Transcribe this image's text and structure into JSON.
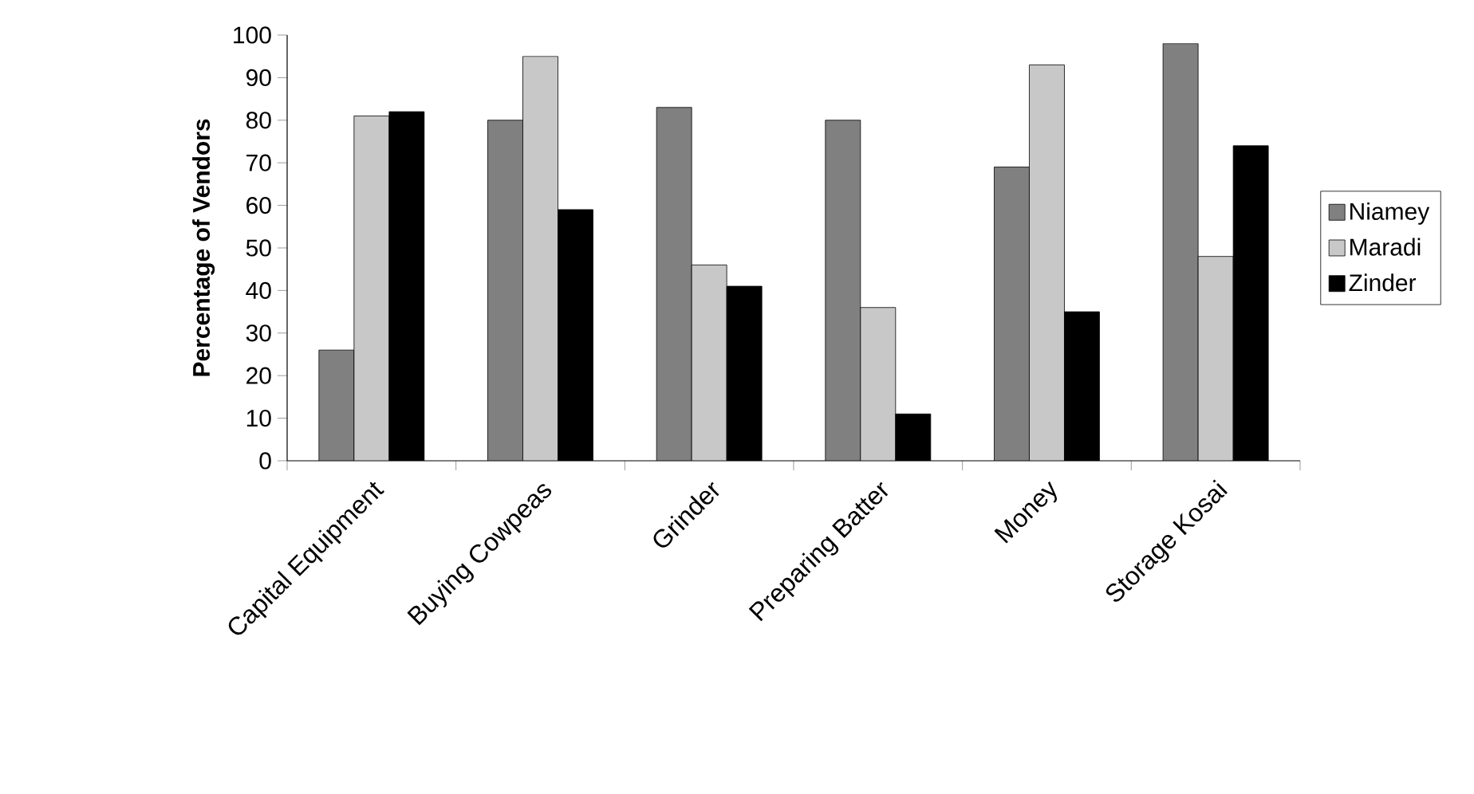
{
  "chart_data": {
    "type": "bar",
    "ylabel": "Percentage of Vendors",
    "categories": [
      "Capital Equipment",
      "Buying Cowpeas",
      "Grinder",
      "Preparing Batter",
      "Money",
      "Storage Kosai"
    ],
    "series": [
      {
        "name": "Niamey",
        "color": "#808080",
        "values": [
          26,
          80,
          83,
          80,
          69,
          98
        ]
      },
      {
        "name": "Maradi",
        "color": "#c8c8c8",
        "values": [
          81,
          95,
          46,
          36,
          93,
          48
        ]
      },
      {
        "name": "Zinder",
        "color": "#000000",
        "values": [
          82,
          59,
          41,
          11,
          35,
          74
        ]
      }
    ],
    "ylim": [
      0,
      100
    ],
    "yticks": [
      0,
      10,
      20,
      30,
      40,
      50,
      60,
      70,
      80,
      90,
      100
    ],
    "grid": false,
    "legend": "right"
  }
}
